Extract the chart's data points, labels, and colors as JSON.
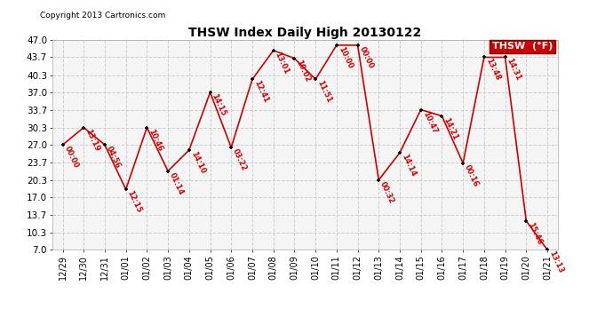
{
  "title": "THSW Index Daily High 20130122",
  "copyright": "Copyright 2013 Cartronics.com",
  "legend_label": "THSW  (°F)",
  "background_color": "#ffffff",
  "plot_bg_color": "#f5f5f5",
  "grid_color": "#cccccc",
  "line_color": "#cc0000",
  "marker_color": "#000000",
  "label_color": "#cc0000",
  "x_labels": [
    "12/29",
    "12/30",
    "12/31",
    "01/01",
    "01/02",
    "01/03",
    "01/04",
    "01/05",
    "01/06",
    "01/07",
    "01/08",
    "01/09",
    "01/10",
    "01/11",
    "01/12",
    "01/13",
    "01/14",
    "01/15",
    "01/16",
    "01/17",
    "01/18",
    "01/19",
    "01/20",
    "01/21"
  ],
  "y_values": [
    27.0,
    30.3,
    27.0,
    18.5,
    30.3,
    22.0,
    26.0,
    37.0,
    26.5,
    39.5,
    45.0,
    43.5,
    39.5,
    46.0,
    46.0,
    20.3,
    25.5,
    33.7,
    32.5,
    23.5,
    43.7,
    43.7,
    12.5,
    7.0
  ],
  "time_labels": [
    "00:00",
    "13:19",
    "04:56",
    "12:15",
    "10:46",
    "01:14",
    "14:10",
    "14:15",
    "03:22",
    "12:41",
    "13:01",
    "10:02",
    "11:51",
    "10:00",
    "00:00",
    "00:32",
    "14:14",
    "10:47",
    "14:21",
    "00:16",
    "13:48",
    "14:31",
    "15:46",
    "13:13"
  ],
  "ylim_min": 7.0,
  "ylim_max": 47.0,
  "yticks": [
    7.0,
    10.3,
    13.7,
    17.0,
    20.3,
    23.7,
    27.0,
    30.3,
    33.7,
    37.0,
    40.3,
    43.7,
    47.0
  ],
  "legend_bg": "#cc0000",
  "legend_text_color": "#ffffff",
  "figwidth": 6.9,
  "figheight": 3.75,
  "dpi": 100
}
